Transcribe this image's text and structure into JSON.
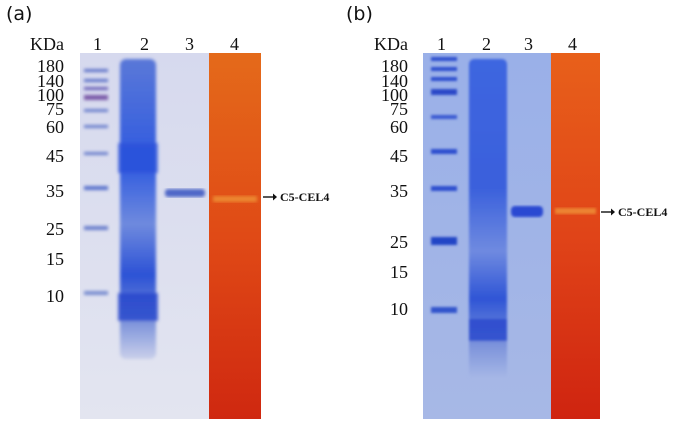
{
  "panels": [
    {
      "label": "(a)",
      "unit": "KDa",
      "lanes": [
        "1",
        "2",
        "3",
        "4"
      ],
      "markers": [
        "180",
        "140",
        "100",
        "75",
        "60",
        "45",
        "35",
        "25",
        "15",
        "10"
      ],
      "band_label": "C5-CEL4"
    },
    {
      "label": "(b)",
      "unit": "KDa",
      "lanes": [
        "1",
        "2",
        "3",
        "4"
      ],
      "markers": [
        "180",
        "140",
        "100",
        "75",
        "60",
        "45",
        "35",
        "25",
        "15",
        "10"
      ],
      "band_label": "C5-CEL4"
    }
  ]
}
